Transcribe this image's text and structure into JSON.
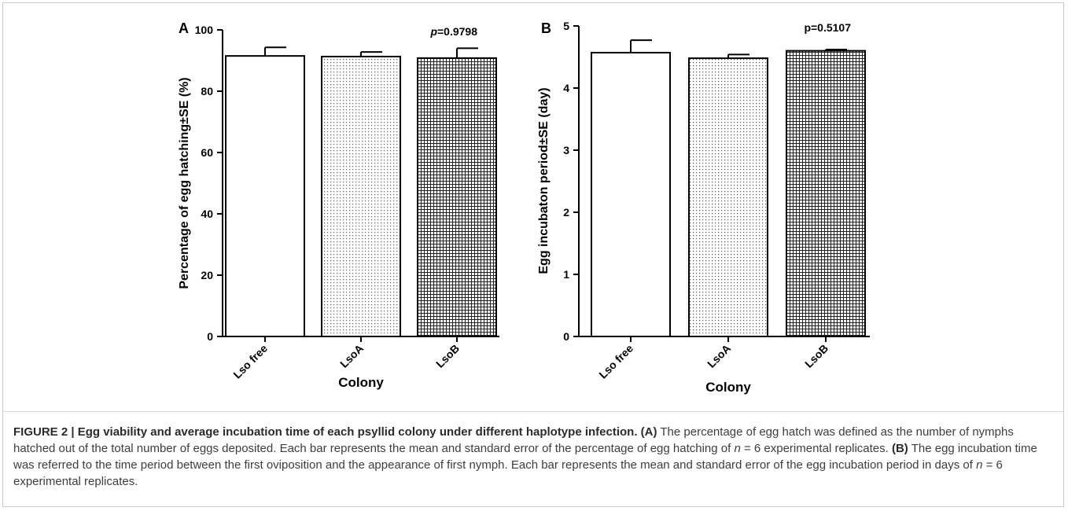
{
  "chart_data": [
    {
      "panel_label": "A",
      "type": "bar",
      "categories": [
        "Lso free",
        "LsoA",
        "LsoB"
      ],
      "values": [
        91.5,
        91.3,
        90.8
      ],
      "errors": [
        2.8,
        1.5,
        3.2
      ],
      "patterns": [
        "none",
        "dots",
        "grid"
      ],
      "ylabel": "Percentage of egg hatching±SE (%)",
      "xlabel": "Colony",
      "ylim": [
        0,
        100
      ],
      "yticks": [
        "0",
        "20",
        "40",
        "60",
        "80",
        "100"
      ],
      "annotation": {
        "prefix": "p",
        "text": "=0.9798"
      }
    },
    {
      "panel_label": "B",
      "type": "bar",
      "categories": [
        "Lso free",
        "LsoA",
        "LsoB"
      ],
      "values": [
        4.57,
        4.48,
        4.6
      ],
      "errors": [
        0.2,
        0.06,
        0.02
      ],
      "patterns": [
        "none",
        "dots",
        "grid"
      ],
      "ylabel": "Egg incubaton period±SE (day)",
      "xlabel": "Colony",
      "ylim": [
        0,
        5
      ],
      "yticks": [
        "0",
        "1",
        "2",
        "3",
        "4",
        "5"
      ],
      "annotation": {
        "prefix": "",
        "text": "p=0.5107"
      }
    }
  ],
  "caption": {
    "heading": "FIGURE 2 | Egg viability and average incubation time of each psyllid colony under different haplotype infection.",
    "label_a": "(A)",
    "text_a_1": " The percentage of egg hatch was defined as the number of nymphs hatched out of the total number of eggs deposited. Each bar represents the mean and standard error of the percentage of egg hatching of ",
    "n_var_a": "n",
    "text_a_2": " = 6 experimental replicates. ",
    "label_b": "(B)",
    "text_b_1": " The egg incubation time was referred to the time period between the first oviposition and the appearance of first nymph. Each bar represents the mean and standard error of the egg incubation period in days of ",
    "n_var_b": "n",
    "text_b_2": " = 6 experimental replicates."
  }
}
